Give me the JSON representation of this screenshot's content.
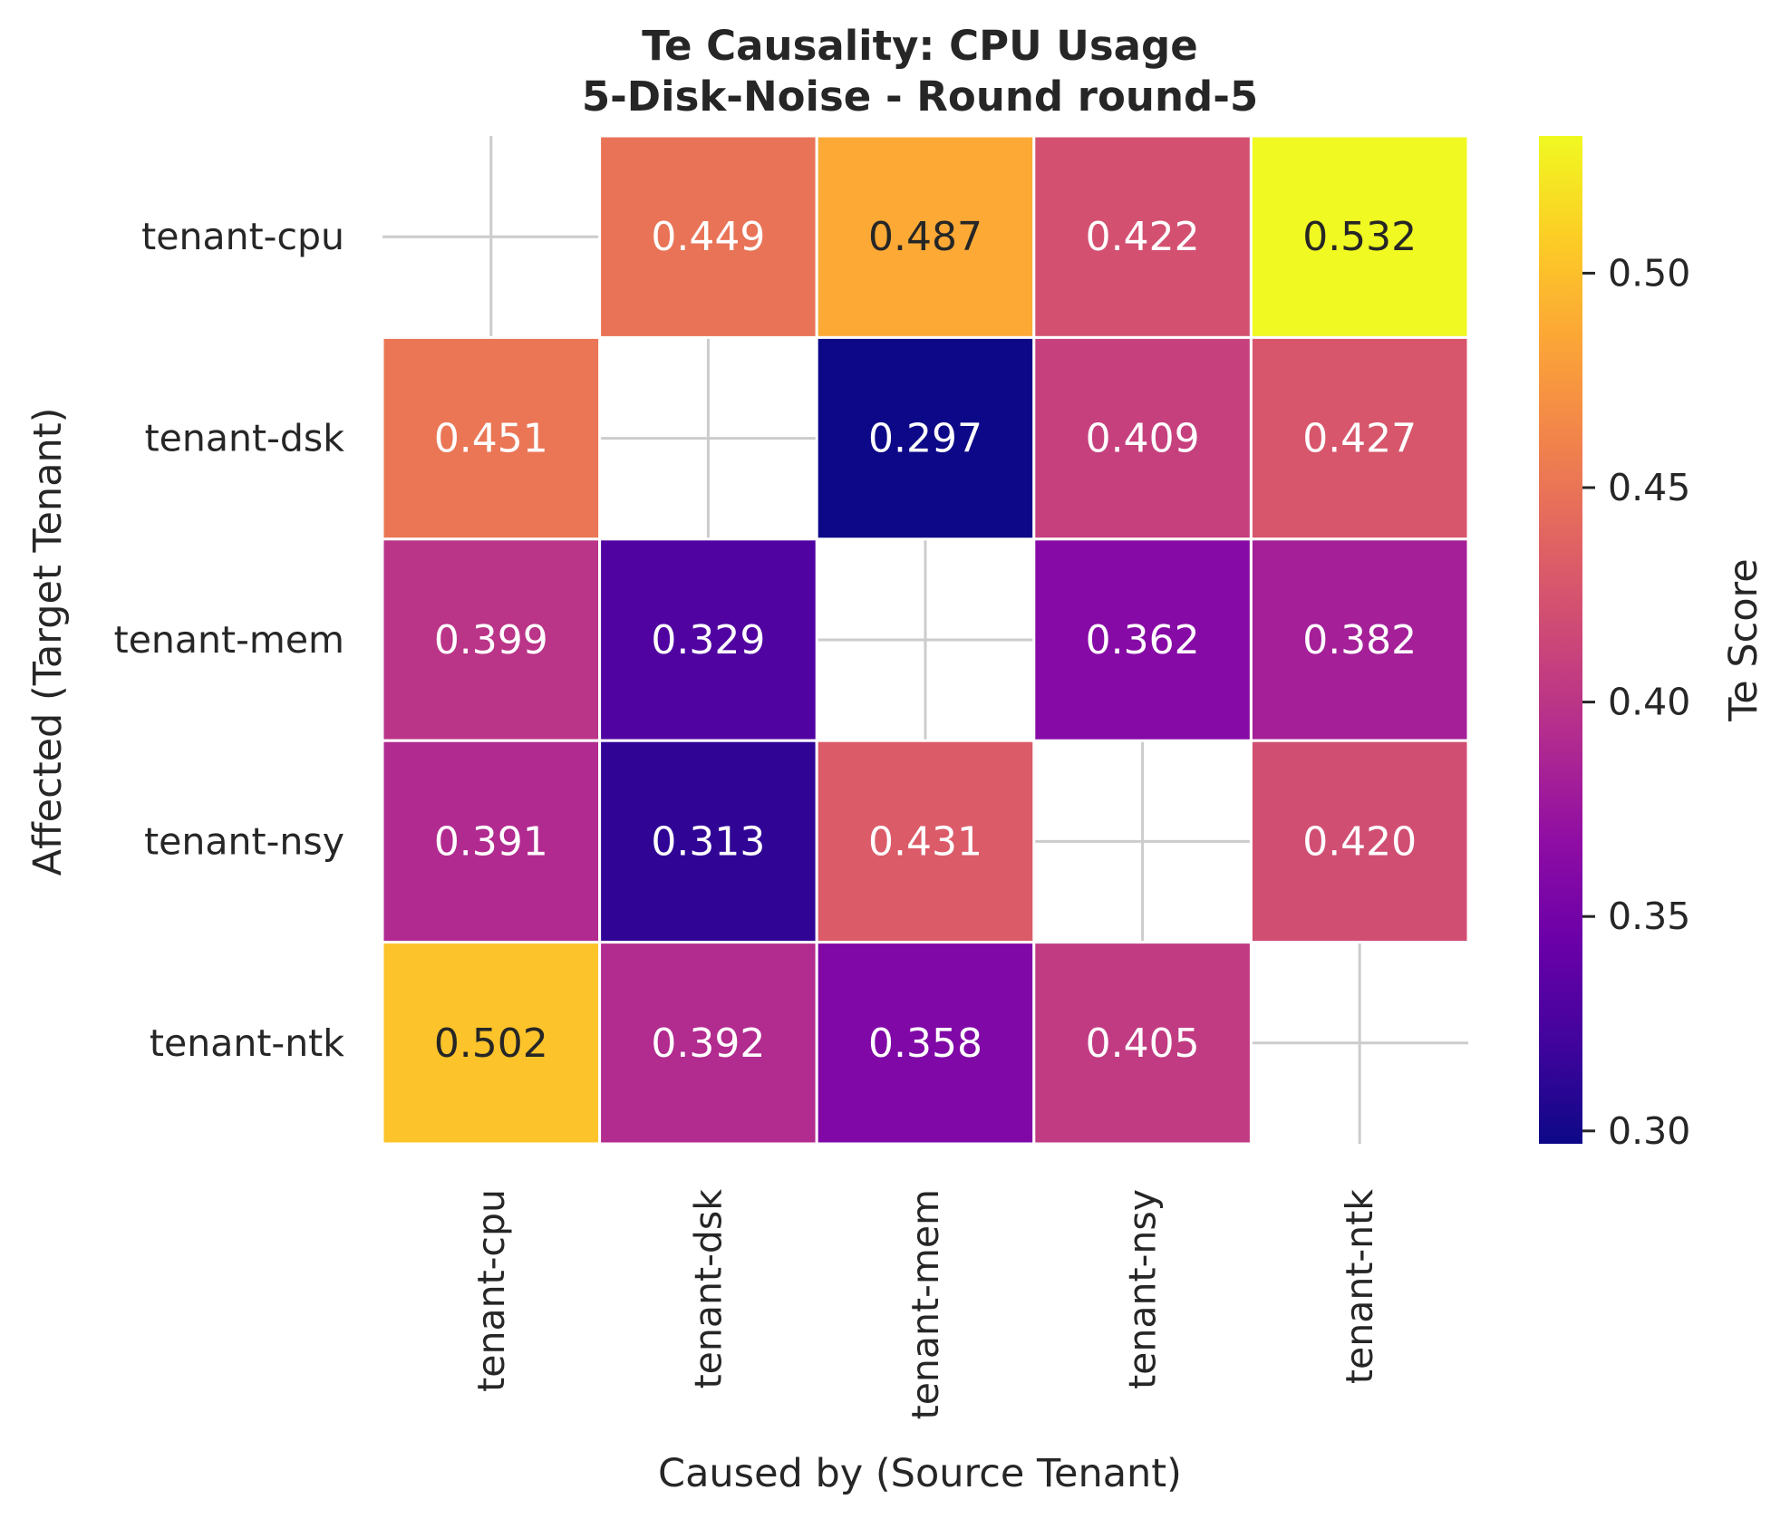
{
  "chart_data": {
    "type": "heatmap",
    "title_lines": [
      "Te Causality: CPU Usage",
      "5-Disk-Noise - Round round-5"
    ],
    "xlabel": "Caused by (Source Tenant)",
    "ylabel": "Affected (Target Tenant)",
    "x_categories": [
      "tenant-cpu",
      "tenant-dsk",
      "tenant-mem",
      "tenant-nsy",
      "tenant-ntk"
    ],
    "y_categories": [
      "tenant-cpu",
      "tenant-dsk",
      "tenant-mem",
      "tenant-nsy",
      "tenant-ntk"
    ],
    "values": [
      [
        null,
        0.449,
        0.487,
        0.422,
        0.532
      ],
      [
        0.451,
        null,
        0.297,
        0.409,
        0.427
      ],
      [
        0.399,
        0.329,
        null,
        0.362,
        0.382
      ],
      [
        0.391,
        0.313,
        0.431,
        null,
        0.42
      ],
      [
        0.502,
        0.392,
        0.358,
        0.405,
        null
      ]
    ],
    "value_labels": [
      [
        "",
        "0.449",
        "0.487",
        "0.422",
        "0.532"
      ],
      [
        "0.451",
        "",
        "0.297",
        "0.409",
        "0.427"
      ],
      [
        "0.399",
        "0.329",
        "",
        "0.362",
        "0.382"
      ],
      [
        "0.391",
        "0.313",
        "0.431",
        "",
        "0.420"
      ],
      [
        "0.502",
        "0.392",
        "0.358",
        "0.405",
        ""
      ]
    ],
    "colorbar": {
      "label": "Te Score",
      "colormap": "plasma",
      "vmin": 0.297,
      "vmax": 0.532,
      "ticks": [
        0.3,
        0.35,
        0.4,
        0.45,
        0.5
      ],
      "tick_labels": [
        "0.30",
        "0.35",
        "0.40",
        "0.45",
        "0.50"
      ]
    },
    "grid": true,
    "cell_border_color": "#ffffff",
    "grid_color": "#cccccc",
    "text_color_dark": "#262626",
    "text_color_light": "#ffffff"
  }
}
